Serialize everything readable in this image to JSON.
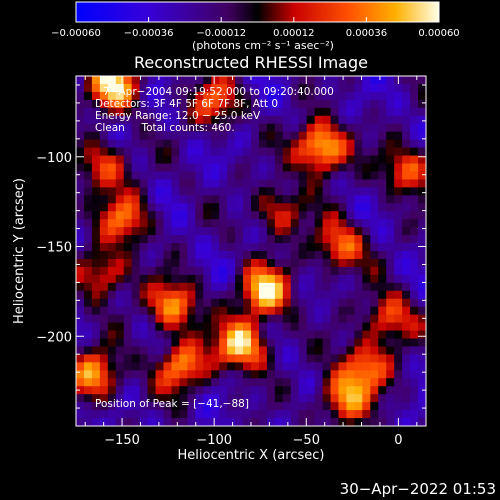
{
  "chart_data": {
    "type": "heatmap",
    "title": "Reconstructed RHESSI Image",
    "xlabel": "Heliocentric X (arcsec)",
    "ylabel": "Heliocentric Y (arcsec)",
    "xlim": [
      -175,
      15
    ],
    "ylim": [
      -250,
      -55
    ],
    "xticks": [
      -150,
      -100,
      -50,
      0
    ],
    "xtick_labels": [
      "−150",
      "−100",
      "−50",
      "0"
    ],
    "yticks": [
      -100,
      -150,
      -200
    ],
    "ytick_labels": [
      "−100",
      "−150",
      "−200"
    ],
    "colorbar": {
      "range": [
        -0.0006,
        0.0006
      ],
      "ticks": [
        -0.0006,
        -0.00036,
        -0.00012,
        0.00012,
        0.00036,
        0.0006
      ],
      "tick_labels": [
        "−0.00060",
        "−0.00036",
        "−0.00012",
        "0.00012",
        "0.00036",
        "0.00060"
      ],
      "unit_label": "(photons cm⁻² s⁻¹ asec⁻²)"
    },
    "annotations": [
      "7−Apr−2004 09:19:52.000 to 09:20:40.000",
      "Detectors: 3F 4F 5F 6F 7F 8F, Att 0",
      "Energy Range: 12.0 − 25.0 keV",
      "Clean     Total counts: 460."
    ],
    "peak_label": "Position of Peak = [−41,−88]",
    "peak": [
      -41,
      -88
    ],
    "sources": [
      {
        "x": -42,
        "y": -95,
        "v": 0.0006
      },
      {
        "x": -72,
        "y": -175,
        "v": 0.00052
      },
      {
        "x": -85,
        "y": -205,
        "v": 0.00055
      },
      {
        "x": -155,
        "y": -60,
        "v": 0.0005
      },
      {
        "x": -122,
        "y": -183,
        "v": 0.0004
      },
      {
        "x": -165,
        "y": -222,
        "v": 0.00042
      },
      {
        "x": -118,
        "y": -217,
        "v": 0.00038
      },
      {
        "x": -30,
        "y": -235,
        "v": 0.00036
      },
      {
        "x": -18,
        "y": -217,
        "v": 0.00034
      },
      {
        "x": -148,
        "y": -135,
        "v": 0.0003
      },
      {
        "x": -160,
        "y": -165,
        "v": 0.0003
      },
      {
        "x": -32,
        "y": -150,
        "v": 0.00034
      },
      {
        "x": -5,
        "y": -190,
        "v": 0.0003
      },
      {
        "x": 5,
        "y": -108,
        "v": 0.0003
      },
      {
        "x": -100,
        "y": -70,
        "v": 0.00026
      },
      {
        "x": -65,
        "y": -130,
        "v": 0.00022
      },
      {
        "x": -160,
        "y": -105,
        "v": 0.00028
      }
    ]
  },
  "timestamp": "30−Apr−2022 01:53"
}
